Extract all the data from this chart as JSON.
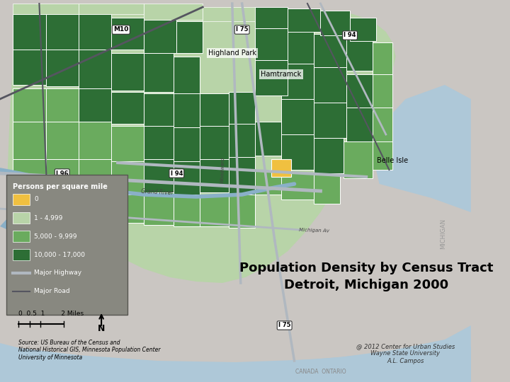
{
  "title_line1": "Population Density by Census Tract",
  "title_line2": "Detroit, Michigan 2000",
  "title_fontsize": 13,
  "title_fontweight": "bold",
  "bg_color": "#cac6c2",
  "map_bg": "#cac6c2",
  "water_color": "#aec8d8",
  "legend_bg": "#888880",
  "legend_title": "Persons per square mile",
  "legend_labels": [
    "0",
    "1 - 4,999",
    "5,000 - 9,999",
    "10,000 - 17,000",
    "Major Highway",
    "Major Road"
  ],
  "source_text": "Source: US Bureau of the Census and\nNational Historical GIS, Minnesota Population Center\nUniversity of Minnesota",
  "credit_text": "@ 2012 Center for Urban Studies\nWayne State University\nA.L. Campos",
  "place_labels": [
    "Highland Park",
    "Hamtramck",
    "Belle Isle"
  ],
  "colors": {
    "light_green": "#b8d4a8",
    "mid_green": "#6aab5e",
    "dark_green": "#2d6e35",
    "yellow": "#f0c040",
    "highway": "#b0b8c0",
    "major_road": "#555560",
    "river": "#8ab0c8"
  }
}
